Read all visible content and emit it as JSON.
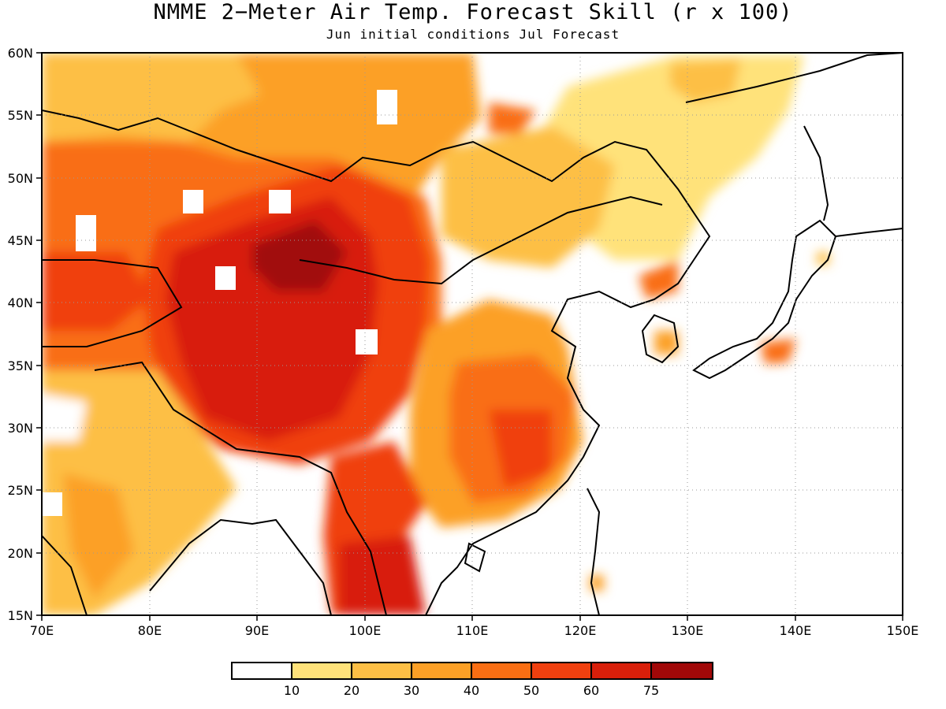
{
  "title": "NMME 2−Meter Air Temp. Forecast Skill (r x 100)",
  "subtitle": "Jun initial conditions  Jul Forecast",
  "map": {
    "lon_range": [
      70,
      150
    ],
    "lat_range": [
      15,
      60
    ],
    "lon_ticks": [
      "70E",
      "80E",
      "90E",
      "100E",
      "110E",
      "120E",
      "130E",
      "140E",
      "150E"
    ],
    "lat_ticks": [
      "60N",
      "55N",
      "50N",
      "45N",
      "40N",
      "35N",
      "30N",
      "25N",
      "20N",
      "15N"
    ],
    "gridlines": "dotted"
  },
  "legend": {
    "colors": [
      "#ffffff",
      "#ffe27a",
      "#fdbf45",
      "#fca026",
      "#f96e13",
      "#f0400f",
      "#d81f0a",
      "#a10808"
    ],
    "labels": [
      "10",
      "20",
      "30",
      "40",
      "50",
      "60",
      "75"
    ]
  }
}
